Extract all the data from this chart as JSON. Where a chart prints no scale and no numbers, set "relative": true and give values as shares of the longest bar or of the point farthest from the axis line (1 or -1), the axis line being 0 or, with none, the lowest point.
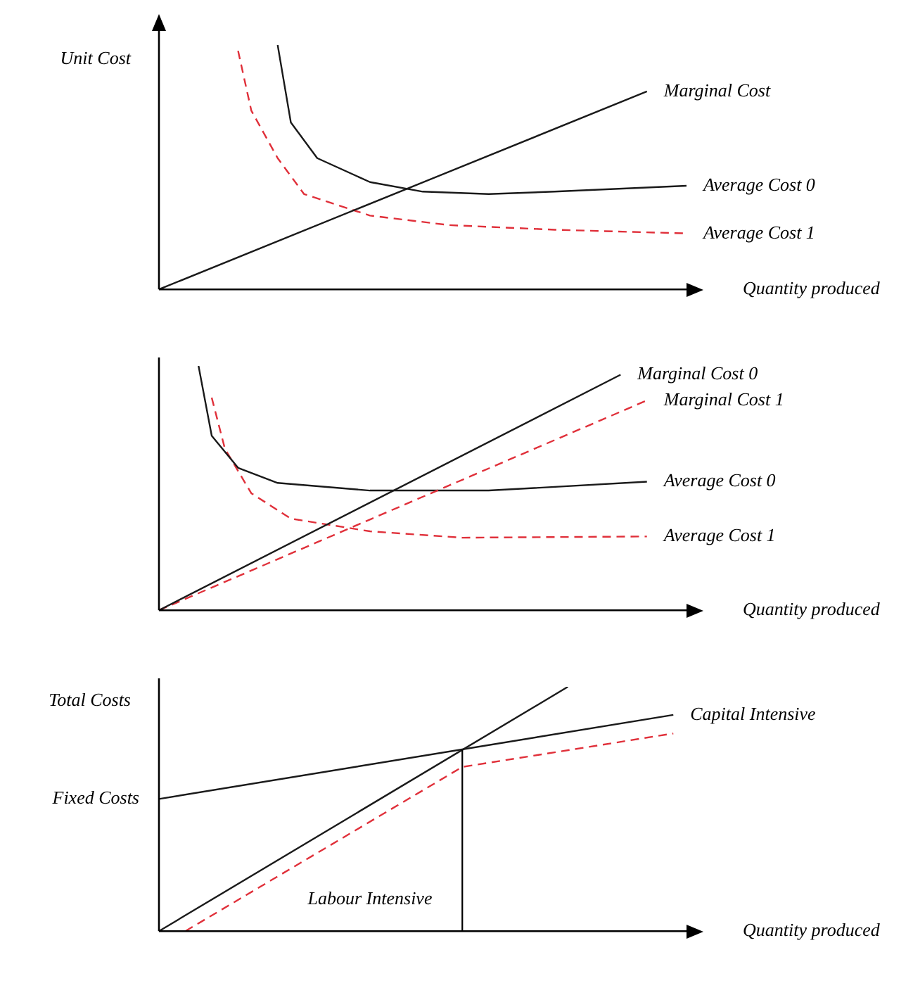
{
  "chart_data": [
    {
      "type": "line",
      "relative": true,
      "ylabel": "Unit Cost",
      "xlabel": "Quantity produced",
      "marker": "none",
      "categories": [
        null,
        null,
        null,
        null,
        null,
        null,
        null,
        null,
        null,
        null,
        null,
        null,
        null,
        null,
        null,
        null,
        null,
        null,
        null,
        null,
        null,
        null,
        null,
        null,
        null,
        null,
        null,
        null,
        null,
        null,
        null,
        null,
        null,
        null,
        null,
        null,
        null,
        null,
        null,
        null,
        null
      ],
      "series": [
        {
          "name": "Marginal Cost",
          "color": "#1a1a1a",
          "values": [
            0,
            null,
            null,
            null,
            null,
            null,
            null,
            null,
            null,
            null,
            null,
            null,
            null,
            null,
            null,
            null,
            null,
            null,
            null,
            null,
            null,
            null,
            null,
            null,
            null,
            null,
            null,
            null,
            null,
            null,
            null,
            null,
            null,
            null,
            null,
            null,
            null,
            0.81,
            null,
            null,
            null
          ]
        },
        {
          "name": "Average Cost 0",
          "color": "#1a1a1a",
          "values": [
            null,
            null,
            null,
            null,
            null,
            null,
            null,
            null,
            null,
            1,
            0.683,
            null,
            0.537,
            null,
            null,
            null,
            0.439,
            null,
            null,
            null,
            0.4,
            null,
            null,
            null,
            null,
            0.39,
            null,
            null,
            null,
            null,
            0.4,
            null,
            null,
            null,
            null,
            null,
            null,
            null,
            null,
            null,
            0.424
          ]
        },
        {
          "name": "Average Cost 1",
          "color": "#e0303a",
          "line_style": "dashed",
          "values": [
            null,
            null,
            null,
            null,
            null,
            null,
            0.976,
            0.732,
            null,
            0.537,
            null,
            0.39,
            null,
            null,
            null,
            null,
            0.302,
            null,
            null,
            null,
            null,
            null,
            0.263,
            null,
            null,
            null,
            null,
            null,
            null,
            null,
            0.244,
            null,
            null,
            null,
            null,
            null,
            null,
            null,
            null,
            null,
            0.229
          ]
        }
      ]
    },
    {
      "type": "line",
      "relative": true,
      "xlabel": "Quantity produced",
      "marker": "none",
      "categories": [
        null,
        null,
        null,
        null,
        null,
        null,
        null,
        null,
        null,
        null,
        null,
        null,
        null,
        null,
        null,
        null,
        null,
        null,
        null,
        null,
        null,
        null,
        null,
        null,
        null,
        null,
        null,
        null,
        null,
        null,
        null,
        null,
        null,
        null,
        null,
        null,
        null,
        null,
        null,
        null,
        null
      ],
      "series": [
        {
          "name": "Marginal Cost 0",
          "color": "#1a1a1a",
          "values": [
            0,
            null,
            null,
            null,
            null,
            null,
            null,
            null,
            null,
            null,
            null,
            null,
            null,
            null,
            null,
            null,
            null,
            null,
            null,
            null,
            null,
            null,
            null,
            null,
            null,
            null,
            null,
            null,
            null,
            null,
            null,
            null,
            null,
            null,
            null,
            0.964,
            null,
            null,
            null,
            null,
            null
          ]
        },
        {
          "name": "Marginal Cost 1",
          "color": "#e0303a",
          "line_style": "dashed",
          "values": [
            0,
            null,
            null,
            null,
            null,
            null,
            null,
            null,
            null,
            null,
            null,
            null,
            null,
            null,
            null,
            null,
            null,
            null,
            null,
            null,
            null,
            null,
            null,
            null,
            null,
            null,
            null,
            null,
            null,
            null,
            null,
            null,
            null,
            null,
            null,
            null,
            null,
            0.859,
            null,
            null,
            null
          ]
        },
        {
          "name": "Average Cost 0",
          "color": "#1a1a1a",
          "values": [
            null,
            null,
            null,
            1,
            0.714,
            null,
            0.583,
            null,
            null,
            0.521,
            null,
            null,
            null,
            null,
            null,
            null,
            0.49,
            null,
            null,
            null,
            null,
            null,
            null,
            null,
            null,
            0.49,
            null,
            null,
            null,
            null,
            null,
            null,
            null,
            null,
            null,
            null,
            null,
            0.526,
            null,
            null,
            null
          ]
        },
        {
          "name": "Average Cost 1",
          "color": "#e0303a",
          "line_style": "dashed",
          "values": [
            null,
            null,
            null,
            null,
            0.87,
            0.661,
            null,
            0.479,
            null,
            null,
            0.375,
            null,
            null,
            null,
            null,
            null,
            0.323,
            null,
            null,
            null,
            null,
            null,
            null,
            0.297,
            null,
            null,
            null,
            null,
            null,
            null,
            null,
            null,
            null,
            null,
            null,
            null,
            null,
            0.302,
            null,
            null,
            null
          ]
        }
      ]
    },
    {
      "type": "line",
      "relative": true,
      "ylabel": "Total Costs",
      "xlabel": "Quantity produced",
      "marker": "none",
      "annotations": [
        "Fixed Costs",
        "Labour Intensive"
      ],
      "categories": [
        null,
        null,
        null,
        null,
        null,
        null,
        null,
        null,
        null,
        null,
        null,
        null,
        null,
        null,
        null,
        null,
        null,
        null,
        null,
        null,
        null,
        null,
        null,
        null,
        null,
        null,
        null,
        null,
        null,
        null,
        null,
        null,
        null,
        null,
        null,
        null,
        null,
        null,
        null,
        null,
        null
      ],
      "series": [
        {
          "color": "#1a1a1a",
          "values": [
            0,
            null,
            null,
            null,
            null,
            null,
            null,
            null,
            null,
            null,
            null,
            null,
            null,
            null,
            null,
            null,
            null,
            null,
            null,
            null,
            null,
            null,
            null,
            null,
            null,
            null,
            null,
            null,
            null,
            null,
            null,
            1,
            null,
            null,
            null,
            null,
            null,
            null,
            null,
            null,
            null
          ]
        },
        {
          "name": "Capital Intensive",
          "color": "#1a1a1a",
          "values": [
            0.541,
            null,
            null,
            null,
            null,
            null,
            null,
            null,
            null,
            null,
            null,
            null,
            null,
            null,
            null,
            null,
            null,
            null,
            null,
            null,
            null,
            null,
            null,
            null,
            null,
            null,
            null,
            null,
            null,
            null,
            null,
            null,
            null,
            null,
            null,
            null,
            null,
            null,
            null,
            0.885,
            null
          ]
        },
        {
          "color": "#e0303a",
          "line_style": "dashed",
          "values": [
            null,
            null,
            0,
            null,
            null,
            null,
            null,
            null,
            null,
            null,
            null,
            null,
            null,
            null,
            null,
            null,
            null,
            null,
            null,
            null,
            null,
            null,
            null,
            0.672,
            null,
            null,
            null,
            null,
            null,
            null,
            null,
            null,
            null,
            null,
            null,
            null,
            null,
            null,
            null,
            0.809,
            null
          ]
        }
      ]
    }
  ]
}
